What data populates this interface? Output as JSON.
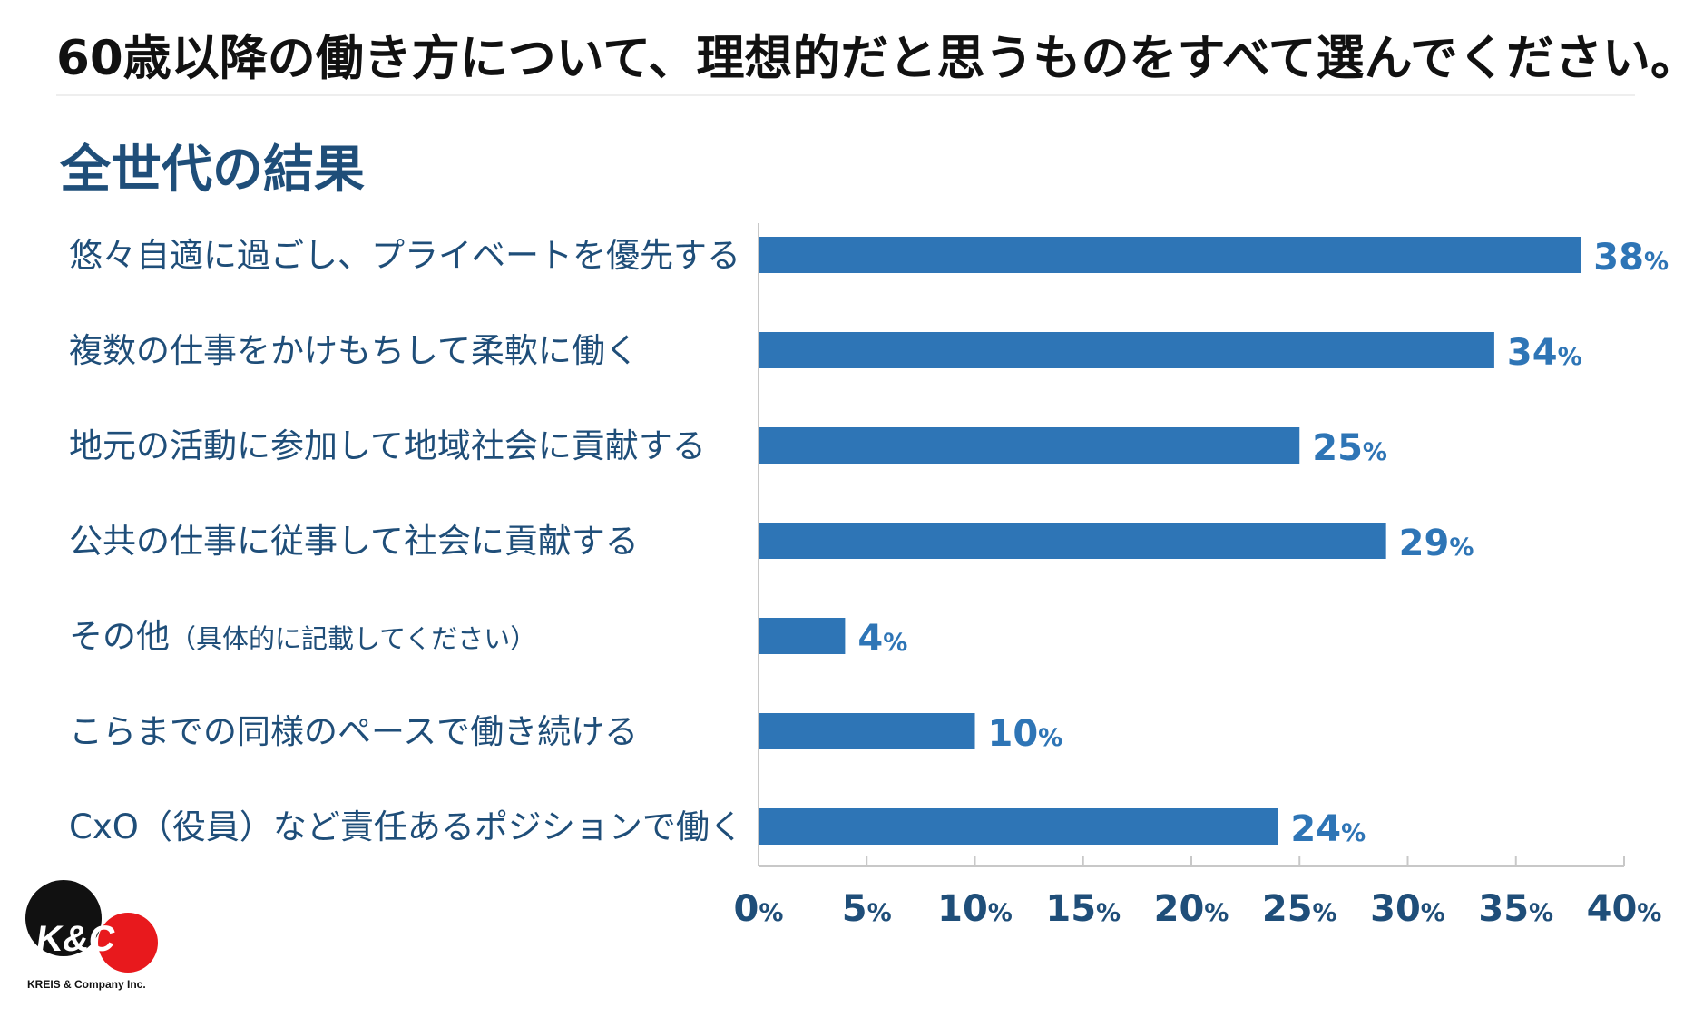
{
  "title": "60歳以降の働き方について、理想的だと思うものをすべて選んでください。",
  "subtitle": "全世代の結果",
  "chart_data": {
    "type": "bar",
    "orientation": "horizontal",
    "categories": [
      "悠々自適に過ごし、プライベートを優先する",
      "複数の仕事をかけもちして柔軟に働く",
      "地元の活動に参加して地域社会に貢献する",
      "公共の仕事に従事して社会に貢献する",
      "その他（具体的に記載してください）",
      "こらまでの同様のペースで働き続ける",
      "CxO（役員）など責任あるポジションで働く"
    ],
    "values": [
      38,
      34,
      25,
      29,
      4,
      10,
      24
    ],
    "value_suffix": "%",
    "xlim": [
      0,
      40
    ],
    "xticks": [
      0,
      5,
      10,
      15,
      20,
      25,
      30,
      35,
      40
    ],
    "grid": false,
    "bar_color": "#2e75b6",
    "label_color": "#1f4e79"
  },
  "logo": {
    "mark": "K&C",
    "caption": "KREIS & Company Inc.",
    "colors": {
      "black": "#111111",
      "red": "#e8191d"
    }
  }
}
